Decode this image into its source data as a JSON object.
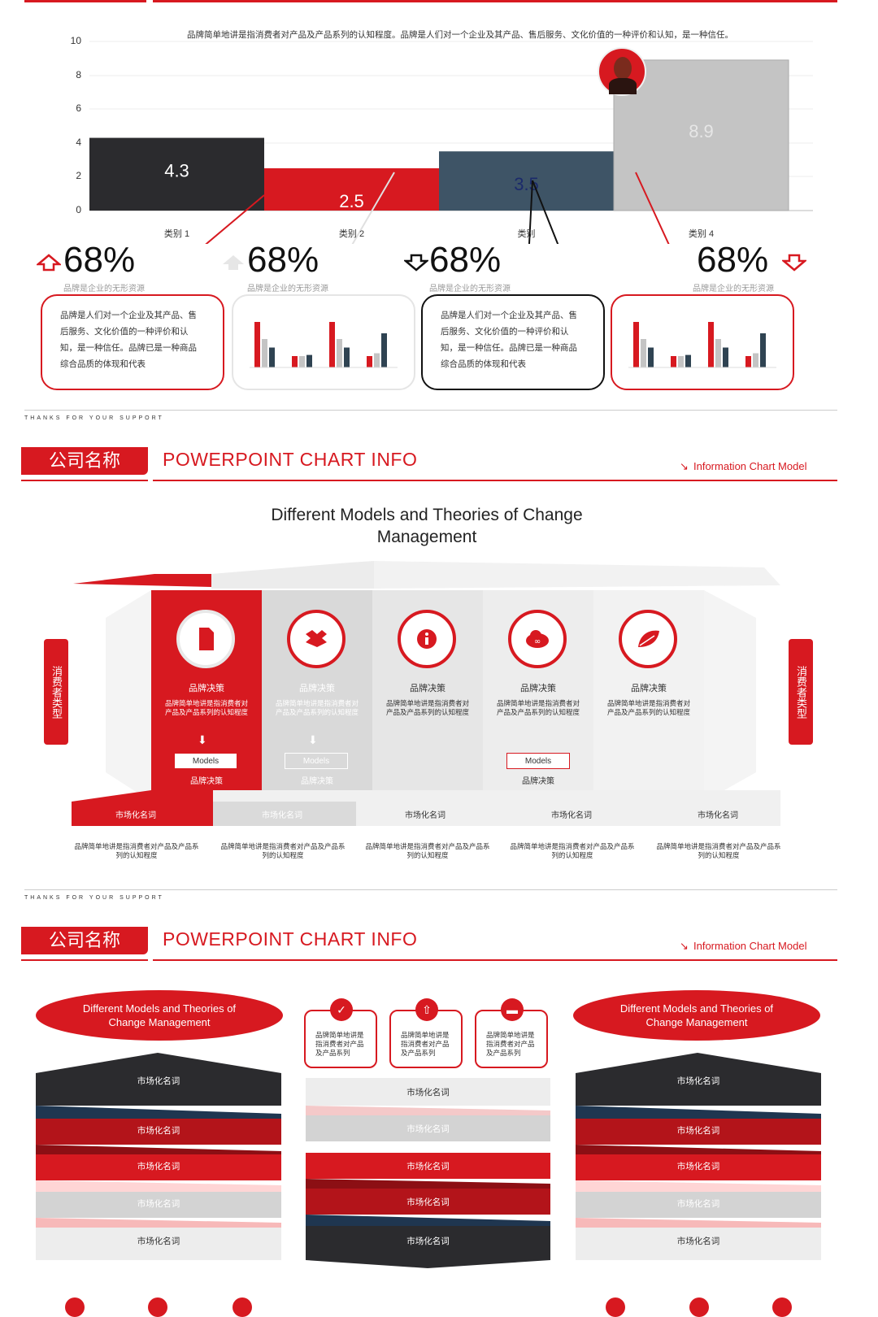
{
  "slide1": {
    "header_text": "品牌简单地讲是指消费者对产品及产品系列的认知程度。品牌是人们对一个企业及其产品、售后服务、文化价值的一种评价和认知，是一种信任。",
    "chart_data": {
      "type": "bar",
      "categories": [
        "类别 1",
        "类别 2",
        "类别",
        "类别 4"
      ],
      "values": [
        4.3,
        2.5,
        3.5,
        8.9
      ],
      "value_labels": [
        "4.3",
        "2.5",
        "3.5",
        "8.9"
      ],
      "y_ticks": [
        "10",
        "8",
        "6",
        "4",
        "2",
        "0"
      ],
      "ylim": [
        0,
        10
      ],
      "colors": [
        "#2b2b2e",
        "#d71920",
        "#3e5466",
        "#c4c4c4"
      ]
    },
    "stats": [
      {
        "value": "68%",
        "sub": "品牌是企业的无形资源",
        "arrow": "up-outline-red"
      },
      {
        "value": "68%",
        "sub": "品牌是企业的无形资源",
        "arrow": "up-gray"
      },
      {
        "value": "68%",
        "sub": "品牌是企业的无形资源",
        "arrow": "down-outline-black"
      },
      {
        "value": "68%",
        "sub": "品牌是企业的无形资源",
        "arrow": "down-outline-red"
      }
    ],
    "boxes": [
      {
        "text": "品牌是人们对一个企业及其产品、售后服务、文化价值的一种评价和认知，是一种信任。品牌已是一种商品综合品质的体现和代表"
      },
      {
        "text": "品牌是人们对一个企业及其产品、售后服务、文化价值的一种评价和认知，是一种信任。品牌已是一种商品综合品质的体现和代表"
      }
    ],
    "mini_charts": [
      {
        "series": [
          [
            8,
            2,
            8,
            2
          ],
          [
            5,
            2,
            5,
            2.5
          ],
          [
            3.5,
            2.2,
            3.5,
            6
          ]
        ],
        "colors": [
          "#d71920",
          "#c4c4c4",
          "#2f4352"
        ]
      },
      {
        "series": [
          [
            8,
            2,
            8,
            2
          ],
          [
            5,
            2,
            5,
            2.5
          ],
          [
            3.5,
            2.2,
            3.5,
            6
          ]
        ],
        "colors": [
          "#d71920",
          "#c4c4c4",
          "#2f4352"
        ]
      }
    ],
    "footer": "THANKS FOR YOUR SUPPORT"
  },
  "header": {
    "badge": "公司名称",
    "title": "POWERPOINT CHART INFO",
    "right_label": "Information Chart Model"
  },
  "slide2": {
    "title_line1": "Different Models and Theories of Change",
    "title_line2": "Management",
    "side_tag": "消费者类型",
    "columns": [
      {
        "icon": "document-icon",
        "title": "品牌决策",
        "desc": "品牌简单地讲是指消费者对产品及产品系列的认知程度",
        "models": "Models",
        "sub": "品牌决策"
      },
      {
        "icon": "dropbox-icon",
        "title": "品牌决策",
        "desc": "品牌简单地讲是指消费者对产品及产品系列的认知程度",
        "models": "Models",
        "sub": "品牌决策"
      },
      {
        "icon": "info-icon",
        "title": "品牌决策",
        "desc": "品牌简单地讲是指消费者对产品及产品系列的认知程度",
        "models": "",
        "sub": ""
      },
      {
        "icon": "cloud-icon",
        "title": "品牌决策",
        "desc": "品牌简单地讲是指消费者对产品及产品系列的认知程度",
        "models": "Models",
        "sub": "品牌决策"
      },
      {
        "icon": "leaf-icon",
        "title": "品牌决策",
        "desc": "品牌简单地讲是指消费者对产品及产品系列的认知程度",
        "models": "",
        "sub": ""
      }
    ],
    "bottom": [
      {
        "label": "市场化名词",
        "desc": "品牌简单地讲是指消费者对产品及产品系列的认知程度"
      },
      {
        "label": "市场化名词",
        "desc": "品牌简单地讲是指消费者对产品及产品系列的认知程度"
      },
      {
        "label": "市场化名词",
        "desc": "品牌简单地讲是指消费者对产品及产品系列的认知程度"
      },
      {
        "label": "市场化名词",
        "desc": "品牌简单地讲是指消费者对产品及产品系列的认知程度"
      },
      {
        "label": "市场化名词",
        "desc": "品牌简单地讲是指消费者对产品及产品系列的认知程度"
      }
    ],
    "footer": "THANKS FOR YOUR SUPPORT"
  },
  "slide3": {
    "ellipse_text": "Different Models and Theories of Change Management",
    "small_boxes": [
      {
        "icon": "check-icon",
        "text": "品牌简单地讲是指消费者对产品及产品系列"
      },
      {
        "icon": "upload-icon",
        "text": "品牌简单地讲是指消费者对产品及产品系列"
      },
      {
        "icon": "folder-icon",
        "text": "品牌简单地讲是指消费者对产品及产品系列"
      }
    ],
    "band_label": "市场化名词"
  }
}
